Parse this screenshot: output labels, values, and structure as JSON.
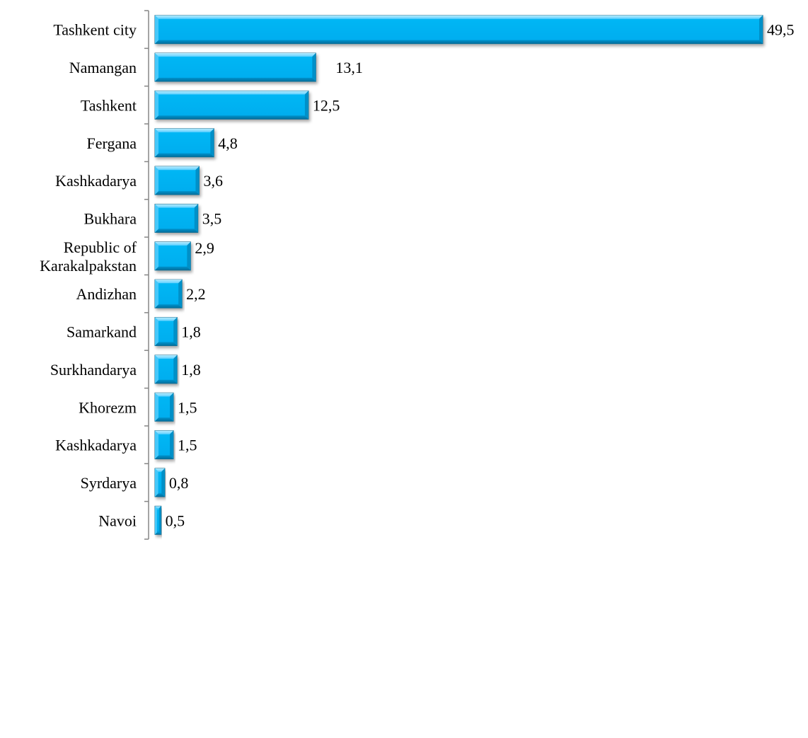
{
  "chart_data": {
    "type": "bar",
    "orientation": "horizontal",
    "categories": [
      "Tashkent city",
      "Namangan",
      "Tashkent",
      "Fergana",
      "Kashkadarya",
      "Bukhara",
      "Republic of Karakalpakstan",
      "Andizhan",
      "Samarkand",
      "Surkhandarya",
      "Khorezm",
      "Kashkadarya",
      "Syrdarya",
      "Navoi"
    ],
    "category_lines": [
      [
        "Tashkent city"
      ],
      [
        "Namangan"
      ],
      [
        "Tashkent"
      ],
      [
        "Fergana"
      ],
      [
        "Kashkadarya"
      ],
      [
        "Bukhara"
      ],
      [
        "Republic of",
        "Karakalpakstan"
      ],
      [
        "Andizhan"
      ],
      [
        "Samarkand"
      ],
      [
        "Surkhandarya"
      ],
      [
        "Khorezm"
      ],
      [
        "Kashkadarya"
      ],
      [
        "Syrdarya"
      ],
      [
        "Navoi"
      ]
    ],
    "values": [
      49.5,
      13.1,
      12.5,
      4.8,
      3.6,
      3.5,
      2.9,
      2.2,
      1.8,
      1.8,
      1.5,
      1.5,
      0.8,
      0.5
    ],
    "value_labels": [
      "49,5",
      "13,1",
      "12,5",
      "4,8",
      "3,6",
      "3,5",
      "2,9",
      "2,2",
      "1,8",
      "1,8",
      "1,5",
      "1,5",
      "0,8",
      "0,5"
    ],
    "xlim": [
      0,
      49.5
    ],
    "title": "",
    "xlabel": "",
    "ylabel": "",
    "grid": false,
    "legend": "none",
    "colors": {
      "bar_fill": "#00B0F0",
      "bar_light": "#8FE0FF",
      "bar_dark": "#0078A8",
      "bar_border": "#1B6C8C",
      "axis": "#868686"
    }
  }
}
